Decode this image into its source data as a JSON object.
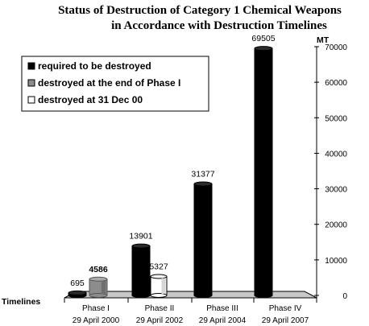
{
  "chart_data": {
    "type": "bar",
    "title": "Status of Destruction of Category 1 Chemical Weapons",
    "subtitle": "in Accordance with Destruction Timelines",
    "xlabel": "Timelines",
    "unit": "MT",
    "ylim": [
      0,
      70000
    ],
    "yticks": [
      0,
      10000,
      20000,
      30000,
      40000,
      50000,
      60000,
      70000
    ],
    "legend_position": "top-left",
    "categories": [
      {
        "line1": "Phase I",
        "line2": "29 April 2000"
      },
      {
        "line1": "Phase II",
        "line2": "29 April 2002"
      },
      {
        "line1": "Phase III",
        "line2": "29 April 2004"
      },
      {
        "line1": "Phase IV",
        "line2": "29 April 2007"
      }
    ],
    "series": [
      {
        "name": "required to be destroyed",
        "color": "#000000",
        "values": [
          695,
          13901,
          31377,
          69505
        ],
        "labels": [
          "695",
          "13901",
          "31377",
          "69505"
        ]
      },
      {
        "name": "destroyed at the end of Phase I",
        "color": "#8c8c8c",
        "values": [
          4586,
          null,
          null,
          null
        ],
        "labels": [
          "4586",
          null,
          null,
          null
        ]
      },
      {
        "name": "destroyed at 31 Dec 00",
        "color": "#ffffff",
        "values": [
          null,
          5327,
          null,
          null
        ],
        "labels": [
          null,
          "5327",
          null,
          null
        ]
      }
    ]
  }
}
